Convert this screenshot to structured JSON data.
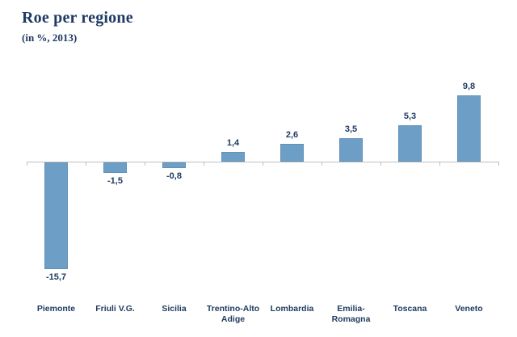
{
  "page": {
    "background": "#ffffff"
  },
  "header": {
    "title": "Roe per regione",
    "subtitle": "(in %, 2013)"
  },
  "colors": {
    "bar_fill": "#6d9ec5",
    "bar_border": "#6191b8",
    "axis": "#bfbfbf",
    "text_navy": "#1f3a5f",
    "title_navy": "#1e3a63"
  },
  "chart_data": {
    "type": "bar",
    "title": "Roe per regione",
    "subtitle": "(in %, 2013)",
    "unit": "%",
    "year": "2013",
    "categories": [
      "Piemonte",
      "Friuli V.G.",
      "Sicilia",
      "Trentino-Alto Adige",
      "Lombardia",
      "Emilia-Romagna",
      "Toscana",
      "Veneto"
    ],
    "category_lines": [
      [
        "Piemonte"
      ],
      [
        "Friuli V.G."
      ],
      [
        "Sicilia"
      ],
      [
        "Trentino-Alto",
        "Adige"
      ],
      [
        "Lombardia"
      ],
      [
        "Emilia-",
        "Romagna"
      ],
      [
        "Toscana"
      ],
      [
        "Veneto"
      ]
    ],
    "values": [
      -15.7,
      -1.5,
      -0.8,
      1.4,
      2.6,
      3.5,
      5.3,
      9.8
    ],
    "value_labels": [
      "-15,7",
      "-1,5",
      "-0,8",
      "1,4",
      "2,6",
      "3,5",
      "5,3",
      "9,8"
    ],
    "baseline": 0,
    "ylim": [
      -17,
      11
    ],
    "gridlines": false,
    "legend": false,
    "data_labels": true,
    "bar_color": "#6d9ec5",
    "axis_color": "#bfbfbf",
    "label_color": "#1f3a5f"
  }
}
